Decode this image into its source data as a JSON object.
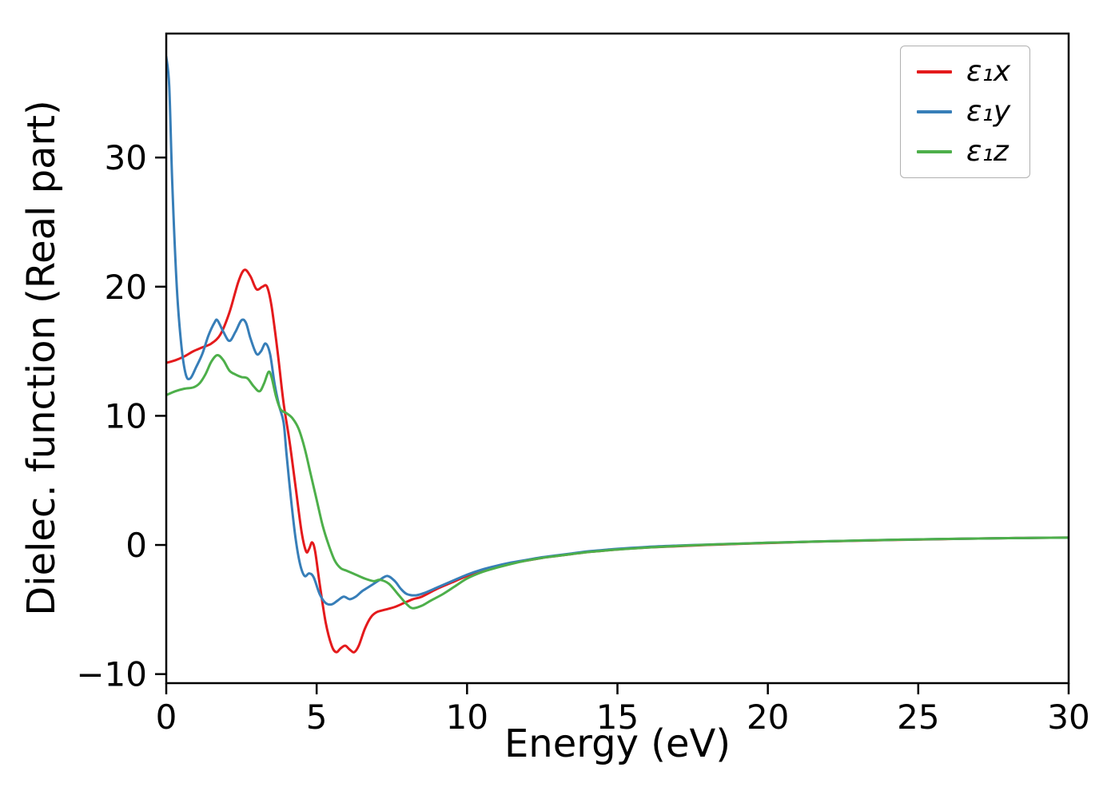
{
  "chart_data": {
    "type": "line",
    "title": "",
    "xlabel": "Energy (eV)",
    "ylabel": "Dielec. function (Real part)",
    "xlim": [
      0,
      30
    ],
    "ylim": [
      -10.7,
      39.6
    ],
    "xticks": [
      0,
      5,
      10,
      15,
      20,
      25,
      30
    ],
    "yticks": [
      -10,
      0,
      10,
      20,
      30
    ],
    "grid": false,
    "legend_position": "upper right",
    "axis_color": "#000000",
    "series": [
      {
        "name": "ε₁x",
        "color": "#e41a1c",
        "points": [
          [
            0,
            14.1
          ],
          [
            0.3,
            14.3
          ],
          [
            0.6,
            14.6
          ],
          [
            0.9,
            15.0
          ],
          [
            1.2,
            15.3
          ],
          [
            1.5,
            15.6
          ],
          [
            1.8,
            16.3
          ],
          [
            2.1,
            18.0
          ],
          [
            2.4,
            20.4
          ],
          [
            2.6,
            21.3
          ],
          [
            2.8,
            20.8
          ],
          [
            3.0,
            19.8
          ],
          [
            3.2,
            20.0
          ],
          [
            3.35,
            20.0
          ],
          [
            3.5,
            18.5
          ],
          [
            3.7,
            15.0
          ],
          [
            3.9,
            11.0
          ],
          [
            4.1,
            8.0
          ],
          [
            4.3,
            4.5
          ],
          [
            4.5,
            1.0
          ],
          [
            4.65,
            -0.5
          ],
          [
            4.75,
            -0.3
          ],
          [
            4.85,
            0.2
          ],
          [
            4.95,
            -0.5
          ],
          [
            5.1,
            -3.0
          ],
          [
            5.3,
            -6.0
          ],
          [
            5.5,
            -7.8
          ],
          [
            5.65,
            -8.3
          ],
          [
            5.8,
            -8.0
          ],
          [
            5.95,
            -7.8
          ],
          [
            6.1,
            -8.1
          ],
          [
            6.25,
            -8.3
          ],
          [
            6.4,
            -7.8
          ],
          [
            6.6,
            -6.5
          ],
          [
            6.8,
            -5.6
          ],
          [
            7.0,
            -5.2
          ],
          [
            7.3,
            -5.0
          ],
          [
            7.6,
            -4.8
          ],
          [
            7.9,
            -4.5
          ],
          [
            8.2,
            -4.2
          ],
          [
            8.5,
            -4.0
          ],
          [
            9.0,
            -3.4
          ],
          [
            9.5,
            -2.9
          ],
          [
            10,
            -2.4
          ],
          [
            10.5,
            -2.0
          ],
          [
            11,
            -1.7
          ],
          [
            11.5,
            -1.4
          ],
          [
            12,
            -1.2
          ],
          [
            12.5,
            -1.0
          ],
          [
            13,
            -0.85
          ],
          [
            13.5,
            -0.7
          ],
          [
            14,
            -0.55
          ],
          [
            14.5,
            -0.45
          ],
          [
            15,
            -0.35
          ],
          [
            16,
            -0.2
          ],
          [
            17,
            -0.1
          ],
          [
            18,
            0.0
          ],
          [
            19,
            0.08
          ],
          [
            20,
            0.15
          ],
          [
            21,
            0.22
          ],
          [
            22,
            0.28
          ],
          [
            23,
            0.33
          ],
          [
            24,
            0.38
          ],
          [
            25,
            0.42
          ],
          [
            26,
            0.46
          ],
          [
            27,
            0.5
          ],
          [
            28,
            0.53
          ],
          [
            29,
            0.55
          ],
          [
            30,
            0.57
          ]
        ]
      },
      {
        "name": "ε₁y",
        "color": "#377eb8",
        "points": [
          [
            0,
            37.8
          ],
          [
            0.1,
            35.5
          ],
          [
            0.2,
            28.0
          ],
          [
            0.35,
            20.0
          ],
          [
            0.5,
            15.5
          ],
          [
            0.65,
            13.2
          ],
          [
            0.8,
            12.9
          ],
          [
            1.0,
            13.8
          ],
          [
            1.2,
            14.8
          ],
          [
            1.4,
            16.2
          ],
          [
            1.6,
            17.2
          ],
          [
            1.7,
            17.4
          ],
          [
            1.9,
            16.5
          ],
          [
            2.1,
            15.8
          ],
          [
            2.3,
            16.5
          ],
          [
            2.5,
            17.4
          ],
          [
            2.65,
            17.2
          ],
          [
            2.8,
            16.0
          ],
          [
            3.0,
            14.8
          ],
          [
            3.15,
            15.0
          ],
          [
            3.3,
            15.6
          ],
          [
            3.45,
            14.8
          ],
          [
            3.6,
            12.5
          ],
          [
            3.75,
            10.8
          ],
          [
            3.9,
            9.5
          ],
          [
            4.0,
            7.0
          ],
          [
            4.15,
            3.5
          ],
          [
            4.3,
            0.5
          ],
          [
            4.45,
            -1.5
          ],
          [
            4.6,
            -2.4
          ],
          [
            4.75,
            -2.2
          ],
          [
            4.9,
            -2.5
          ],
          [
            5.1,
            -3.8
          ],
          [
            5.3,
            -4.5
          ],
          [
            5.5,
            -4.6
          ],
          [
            5.7,
            -4.3
          ],
          [
            5.9,
            -4.0
          ],
          [
            6.1,
            -4.2
          ],
          [
            6.3,
            -4.0
          ],
          [
            6.5,
            -3.6
          ],
          [
            6.7,
            -3.3
          ],
          [
            6.9,
            -3.0
          ],
          [
            7.1,
            -2.7
          ],
          [
            7.35,
            -2.4
          ],
          [
            7.6,
            -2.8
          ],
          [
            7.8,
            -3.4
          ],
          [
            8.0,
            -3.8
          ],
          [
            8.3,
            -3.9
          ],
          [
            8.6,
            -3.7
          ],
          [
            9.0,
            -3.3
          ],
          [
            9.5,
            -2.8
          ],
          [
            10,
            -2.3
          ],
          [
            10.5,
            -1.9
          ],
          [
            11,
            -1.6
          ],
          [
            11.5,
            -1.35
          ],
          [
            12,
            -1.15
          ],
          [
            12.5,
            -0.95
          ],
          [
            13,
            -0.8
          ],
          [
            13.5,
            -0.65
          ],
          [
            14,
            -0.5
          ],
          [
            14.5,
            -0.4
          ],
          [
            15,
            -0.3
          ],
          [
            16,
            -0.15
          ],
          [
            17,
            -0.05
          ],
          [
            18,
            0.03
          ],
          [
            19,
            0.1
          ],
          [
            20,
            0.17
          ],
          [
            21,
            0.23
          ],
          [
            22,
            0.29
          ],
          [
            23,
            0.34
          ],
          [
            24,
            0.39
          ],
          [
            25,
            0.43
          ],
          [
            26,
            0.47
          ],
          [
            27,
            0.5
          ],
          [
            28,
            0.53
          ],
          [
            29,
            0.55
          ],
          [
            30,
            0.57
          ]
        ]
      },
      {
        "name": "ε₁z",
        "color": "#4daf4a",
        "points": [
          [
            0,
            11.6
          ],
          [
            0.3,
            11.9
          ],
          [
            0.6,
            12.1
          ],
          [
            0.9,
            12.2
          ],
          [
            1.1,
            12.5
          ],
          [
            1.3,
            13.2
          ],
          [
            1.5,
            14.2
          ],
          [
            1.7,
            14.7
          ],
          [
            1.9,
            14.3
          ],
          [
            2.1,
            13.5
          ],
          [
            2.3,
            13.2
          ],
          [
            2.5,
            13.0
          ],
          [
            2.7,
            12.9
          ],
          [
            2.9,
            12.3
          ],
          [
            3.1,
            11.9
          ],
          [
            3.25,
            12.5
          ],
          [
            3.4,
            13.4
          ],
          [
            3.5,
            13.0
          ],
          [
            3.65,
            11.5
          ],
          [
            3.8,
            10.5
          ],
          [
            4.0,
            10.2
          ],
          [
            4.2,
            9.8
          ],
          [
            4.4,
            9.0
          ],
          [
            4.6,
            7.5
          ],
          [
            4.8,
            5.5
          ],
          [
            5.0,
            3.5
          ],
          [
            5.2,
            1.5
          ],
          [
            5.4,
            0.0
          ],
          [
            5.6,
            -1.2
          ],
          [
            5.8,
            -1.8
          ],
          [
            6.0,
            -2.0
          ],
          [
            6.3,
            -2.3
          ],
          [
            6.6,
            -2.6
          ],
          [
            6.9,
            -2.8
          ],
          [
            7.1,
            -2.7
          ],
          [
            7.4,
            -3.0
          ],
          [
            7.7,
            -3.8
          ],
          [
            8.0,
            -4.6
          ],
          [
            8.2,
            -4.9
          ],
          [
            8.5,
            -4.7
          ],
          [
            8.8,
            -4.3
          ],
          [
            9.2,
            -3.8
          ],
          [
            9.6,
            -3.2
          ],
          [
            10,
            -2.6
          ],
          [
            10.5,
            -2.1
          ],
          [
            11,
            -1.75
          ],
          [
            11.5,
            -1.45
          ],
          [
            12,
            -1.2
          ],
          [
            12.5,
            -1.0
          ],
          [
            13,
            -0.85
          ],
          [
            13.5,
            -0.7
          ],
          [
            14,
            -0.55
          ],
          [
            14.5,
            -0.45
          ],
          [
            15,
            -0.35
          ],
          [
            16,
            -0.2
          ],
          [
            17,
            -0.08
          ],
          [
            18,
            0.02
          ],
          [
            19,
            0.1
          ],
          [
            20,
            0.17
          ],
          [
            21,
            0.23
          ],
          [
            22,
            0.29
          ],
          [
            23,
            0.34
          ],
          [
            24,
            0.39
          ],
          [
            25,
            0.43
          ],
          [
            26,
            0.47
          ],
          [
            27,
            0.5
          ],
          [
            28,
            0.53
          ],
          [
            29,
            0.55
          ],
          [
            30,
            0.57
          ]
        ]
      }
    ]
  }
}
